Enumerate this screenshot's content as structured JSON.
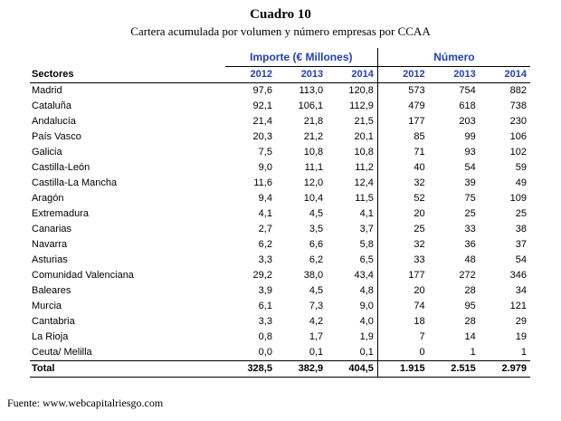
{
  "header": {
    "title": "Cuadro 10",
    "subtitle": "Cartera acumulada por volumen y número empresas por CCAA"
  },
  "table": {
    "group_importe": "Importe (€ Millones)",
    "group_numero": "Número",
    "col_sectores": "Sectores",
    "years": [
      "2012",
      "2013",
      "2014",
      "2012",
      "2013",
      "2014"
    ],
    "rows": [
      {
        "name": "Madrid",
        "values": [
          "97,6",
          "113,0",
          "120,8",
          "573",
          "754",
          "882"
        ]
      },
      {
        "name": "Cataluña",
        "values": [
          "92,1",
          "106,1",
          "112,9",
          "479",
          "618",
          "738"
        ]
      },
      {
        "name": "Andalucía",
        "values": [
          "21,4",
          "21,8",
          "21,5",
          "177",
          "203",
          "230"
        ]
      },
      {
        "name": "País Vasco",
        "values": [
          "20,3",
          "21,2",
          "20,1",
          "85",
          "99",
          "106"
        ]
      },
      {
        "name": "Galicia",
        "values": [
          "7,5",
          "10,8",
          "10,8",
          "71",
          "93",
          "102"
        ]
      },
      {
        "name": "Castilla-León",
        "values": [
          "9,0",
          "11,1",
          "11,2",
          "40",
          "54",
          "59"
        ]
      },
      {
        "name": "Castilla-La Mancha",
        "values": [
          "11,6",
          "12,0",
          "12,4",
          "32",
          "39",
          "49"
        ]
      },
      {
        "name": "Aragón",
        "values": [
          "9,4",
          "10,4",
          "11,5",
          "52",
          "75",
          "109"
        ]
      },
      {
        "name": "Extremadura",
        "values": [
          "4,1",
          "4,5",
          "4,1",
          "20",
          "25",
          "25"
        ]
      },
      {
        "name": "Canarias",
        "values": [
          "2,7",
          "3,5",
          "3,7",
          "25",
          "33",
          "38"
        ]
      },
      {
        "name": "Navarra",
        "values": [
          "6,2",
          "6,6",
          "5,8",
          "32",
          "36",
          "37"
        ]
      },
      {
        "name": "Asturias",
        "values": [
          "3,3",
          "6,2",
          "6,5",
          "33",
          "48",
          "54"
        ]
      },
      {
        "name": "Comunidad Valenciana",
        "values": [
          "29,2",
          "38,0",
          "43,4",
          "177",
          "272",
          "346"
        ]
      },
      {
        "name": "Baleares",
        "values": [
          "3,9",
          "4,5",
          "4,8",
          "20",
          "28",
          "34"
        ]
      },
      {
        "name": "Murcia",
        "values": [
          "6,1",
          "7,3",
          "9,0",
          "74",
          "95",
          "121"
        ]
      },
      {
        "name": "Cantabria",
        "values": [
          "3,3",
          "4,2",
          "4,0",
          "18",
          "28",
          "29"
        ]
      },
      {
        "name": "La Rioja",
        "values": [
          "0,8",
          "1,7",
          "1,9",
          "7",
          "14",
          "19"
        ]
      },
      {
        "name": "Ceuta/ Melilla",
        "values": [
          "0,0",
          "0,1",
          "0,1",
          "0",
          "1",
          "1"
        ]
      }
    ],
    "total": {
      "name": "Total",
      "values": [
        "328,5",
        "382,9",
        "404,5",
        "1.915",
        "2.515",
        "2.979"
      ]
    }
  },
  "footer": {
    "source": "Fuente: www.webcapitalriesgo.com"
  },
  "colors": {
    "header_blue": "#1f3fbf"
  }
}
